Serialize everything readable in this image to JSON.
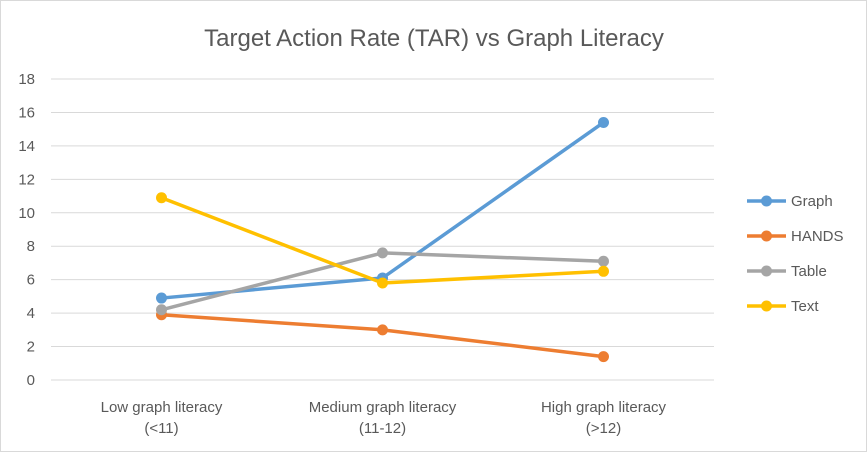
{
  "chart_data": {
    "type": "line",
    "title": "Target Action Rate (TAR) vs Graph Literacy",
    "categories": [
      [
        "Low graph literacy",
        "(<11)"
      ],
      [
        "Medium graph literacy",
        "(11-12)"
      ],
      [
        "High graph literacy",
        "(>12)"
      ]
    ],
    "ylim": [
      0,
      18
    ],
    "yticks": [
      0,
      2,
      4,
      6,
      8,
      10,
      12,
      14,
      16,
      18
    ],
    "grid": true,
    "legend_position": "right",
    "series": [
      {
        "name": "Graph",
        "color": "#5b9bd5",
        "values": [
          4.9,
          6.1,
          15.4
        ]
      },
      {
        "name": "HANDS",
        "color": "#ed7d31",
        "values": [
          3.9,
          3.0,
          1.4
        ]
      },
      {
        "name": "Table",
        "color": "#a5a5a5",
        "values": [
          4.2,
          7.6,
          7.1
        ]
      },
      {
        "name": "Text",
        "color": "#ffc000",
        "values": [
          10.9,
          5.8,
          6.5
        ]
      }
    ]
  }
}
